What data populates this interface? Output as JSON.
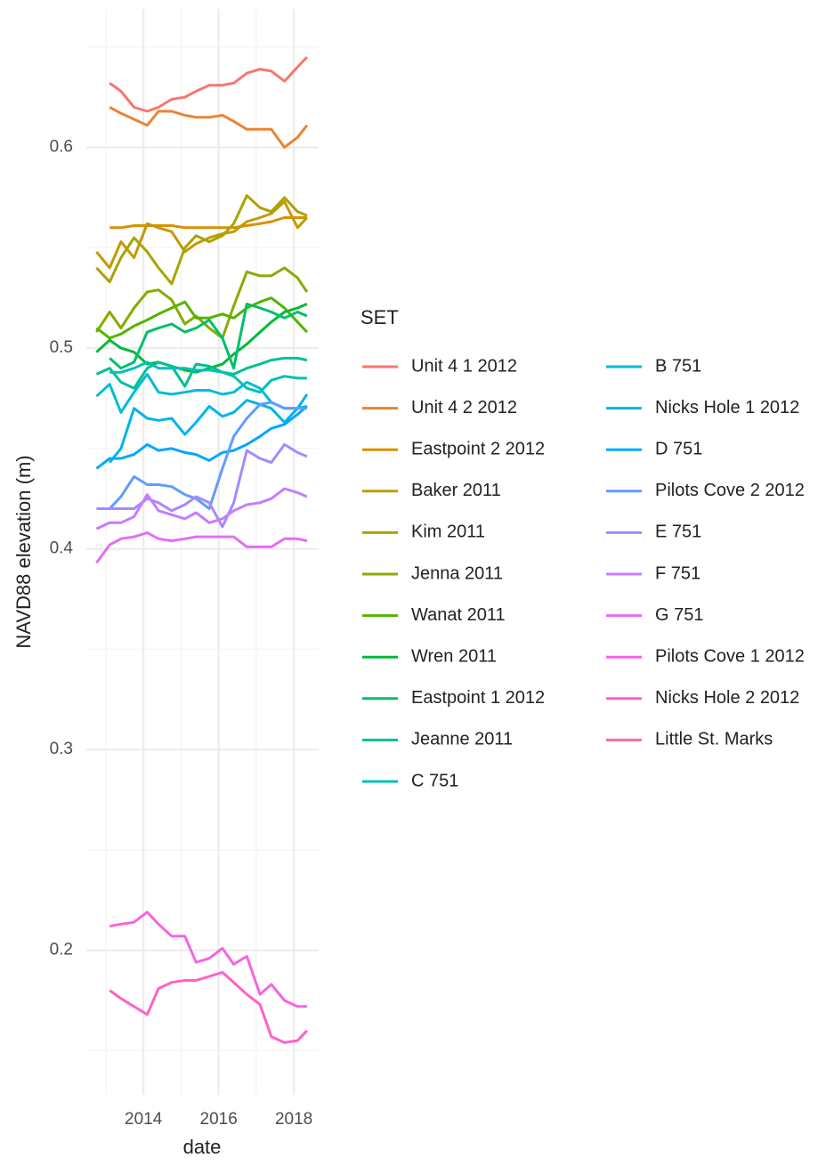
{
  "chart_data": {
    "type": "line",
    "x_label": "date",
    "y_label": "NAVD88 elevation (m)",
    "legend_title": "SET",
    "x": [
      2012.75,
      2013.1,
      2013.4,
      2013.75,
      2014.1,
      2014.4,
      2014.75,
      2015.1,
      2015.4,
      2015.75,
      2016.1,
      2016.4,
      2016.75,
      2017.1,
      2017.4,
      2017.75,
      2018.1,
      2018.35
    ],
    "xlim": [
      2012.48,
      2018.66
    ],
    "xticks": [
      2014,
      2016,
      2018
    ],
    "x_minor_ticks": [
      2013,
      2015,
      2017
    ],
    "ylim": [
      0.128,
      0.669
    ],
    "yticks": [
      0.2,
      0.3,
      0.4,
      0.5,
      0.6
    ],
    "y_minor_ticks": [
      0.15,
      0.25,
      0.35,
      0.45,
      0.55,
      0.65
    ],
    "grid": true,
    "series": [
      {
        "name": "Unit 4 1 2012",
        "color": "#F8766D",
        "values": [
          null,
          0.632,
          0.628,
          0.62,
          0.618,
          0.62,
          0.624,
          0.625,
          0.628,
          0.631,
          0.631,
          0.632,
          0.637,
          0.639,
          0.638,
          0.633,
          0.64,
          0.645
        ]
      },
      {
        "name": "Unit 4 2 2012",
        "color": "#EB8335",
        "values": [
          null,
          0.62,
          0.617,
          0.614,
          0.611,
          0.618,
          0.618,
          0.616,
          0.615,
          0.615,
          0.616,
          0.613,
          0.609,
          0.609,
          0.609,
          0.6,
          0.605,
          0.611
        ]
      },
      {
        "name": "Eastpoint 2 2012",
        "color": "#DA8F00",
        "values": [
          null,
          0.56,
          0.56,
          0.561,
          0.561,
          0.561,
          0.561,
          0.56,
          0.56,
          0.56,
          0.56,
          0.56,
          0.561,
          0.562,
          0.563,
          0.565,
          0.565,
          0.565
        ]
      },
      {
        "name": "Baker 2011",
        "color": "#C49A00",
        "values": [
          0.548,
          0.54,
          0.553,
          0.545,
          0.562,
          0.56,
          0.558,
          0.548,
          0.552,
          0.555,
          0.557,
          0.558,
          0.563,
          0.565,
          0.567,
          0.573,
          0.56,
          0.565
        ]
      },
      {
        "name": "Kim 2011",
        "color": "#A9A400",
        "values": [
          0.54,
          0.533,
          0.545,
          0.555,
          0.548,
          0.54,
          0.532,
          0.55,
          0.556,
          0.553,
          0.556,
          0.562,
          0.576,
          0.57,
          0.568,
          0.575,
          0.568,
          0.566
        ]
      },
      {
        "name": "Jenna 2011",
        "color": "#86AC00",
        "values": [
          0.508,
          0.518,
          0.51,
          0.52,
          0.528,
          0.529,
          0.524,
          0.512,
          0.516,
          0.51,
          0.505,
          0.521,
          0.538,
          0.536,
          0.536,
          0.54,
          0.535,
          0.528
        ]
      },
      {
        "name": "Wanat 2011",
        "color": "#53B400",
        "values": [
          0.51,
          0.505,
          0.507,
          0.511,
          0.514,
          0.517,
          0.52,
          0.523,
          0.515,
          0.515,
          0.517,
          0.515,
          0.52,
          0.523,
          0.525,
          0.52,
          0.513,
          0.508
        ]
      },
      {
        "name": "Wren 2011",
        "color": "#00BA38",
        "values": [
          0.498,
          0.504,
          0.5,
          0.498,
          0.492,
          0.493,
          0.491,
          0.489,
          0.488,
          0.49,
          0.492,
          0.497,
          0.502,
          0.508,
          0.513,
          0.518,
          0.52,
          0.522
        ]
      },
      {
        "name": "Eastpoint 1 2012",
        "color": "#00BE6C",
        "values": [
          null,
          0.495,
          0.49,
          0.493,
          0.508,
          0.51,
          0.512,
          0.508,
          0.51,
          0.514,
          0.505,
          0.49,
          0.522,
          0.52,
          0.518,
          0.515,
          0.518,
          0.516
        ]
      },
      {
        "name": "Jeanne 2011",
        "color": "#00C094",
        "values": [
          0.487,
          0.49,
          0.483,
          0.48,
          0.49,
          0.493,
          0.491,
          0.481,
          0.492,
          0.491,
          0.488,
          0.487,
          0.49,
          0.492,
          0.494,
          0.495,
          0.495,
          0.494
        ]
      },
      {
        "name": "C 751",
        "color": "#00C0B8",
        "values": [
          null,
          0.488,
          0.488,
          0.49,
          0.493,
          0.49,
          0.49,
          0.49,
          0.489,
          0.489,
          0.488,
          0.486,
          0.48,
          0.478,
          0.484,
          0.486,
          0.485,
          0.485
        ]
      },
      {
        "name": "B 751",
        "color": "#00BCD8",
        "values": [
          0.476,
          0.482,
          0.468,
          0.478,
          0.487,
          0.478,
          0.477,
          0.478,
          0.479,
          0.479,
          0.477,
          0.478,
          0.483,
          0.48,
          0.473,
          0.47,
          0.47,
          0.471
        ]
      },
      {
        "name": "Nicks Hole 1 2012",
        "color": "#00B4F0",
        "values": [
          null,
          0.443,
          0.45,
          0.47,
          0.465,
          0.464,
          0.465,
          0.457,
          0.463,
          0.471,
          0.466,
          0.468,
          0.474,
          0.472,
          0.47,
          0.463,
          0.47,
          0.477
        ]
      },
      {
        "name": "D 751",
        "color": "#00A8FF",
        "values": [
          0.44,
          0.445,
          0.445,
          0.447,
          0.452,
          0.449,
          0.45,
          0.448,
          0.447,
          0.444,
          0.448,
          0.449,
          0.452,
          0.456,
          0.46,
          0.462,
          0.467,
          0.471
        ]
      },
      {
        "name": "Pilots Cove 2 2012",
        "color": "#619CFF",
        "values": [
          null,
          0.42,
          0.426,
          0.436,
          0.432,
          0.432,
          0.431,
          0.427,
          0.425,
          0.42,
          0.44,
          0.456,
          0.465,
          0.472,
          0.473,
          0.47,
          0.47,
          0.47
        ]
      },
      {
        "name": "E 751",
        "color": "#A58AFF",
        "values": [
          0.42,
          0.42,
          0.42,
          0.42,
          0.425,
          0.423,
          0.419,
          0.422,
          0.426,
          0.423,
          0.411,
          0.423,
          0.449,
          0.445,
          0.443,
          0.452,
          0.448,
          0.446
        ]
      },
      {
        "name": "F 751",
        "color": "#C77CFF",
        "values": [
          0.41,
          0.413,
          0.413,
          0.416,
          0.427,
          0.419,
          0.417,
          0.415,
          0.418,
          0.413,
          0.415,
          0.419,
          0.422,
          0.423,
          0.425,
          0.43,
          0.428,
          0.426
        ]
      },
      {
        "name": "G 751",
        "color": "#E46DF6",
        "values": [
          0.393,
          0.402,
          0.405,
          0.406,
          0.408,
          0.405,
          0.404,
          0.405,
          0.406,
          0.406,
          0.406,
          0.406,
          0.401,
          0.401,
          0.401,
          0.405,
          0.405,
          0.404
        ]
      },
      {
        "name": "Pilots Cove 1 2012",
        "color": "#F564E3",
        "values": [
          null,
          0.212,
          0.213,
          0.214,
          0.219,
          0.213,
          0.207,
          0.207,
          0.194,
          0.196,
          0.201,
          0.193,
          0.197,
          0.178,
          0.183,
          0.175,
          0.172,
          0.172
        ]
      },
      {
        "name": "Nicks Hole 2 2012",
        "color": "#FF61C9",
        "values": [
          null,
          0.18,
          0.176,
          0.172,
          0.168,
          0.181,
          0.184,
          0.185,
          0.185,
          0.187,
          0.189,
          0.184,
          0.178,
          0.173,
          0.157,
          0.154,
          0.155,
          0.16
        ]
      },
      {
        "name": "Little St. Marks",
        "color": "#FF67A4",
        "values": [
          null,
          null,
          null,
          null,
          null,
          null,
          null,
          null,
          null,
          null,
          null,
          null,
          null,
          null,
          null,
          null,
          null,
          null
        ]
      }
    ]
  }
}
